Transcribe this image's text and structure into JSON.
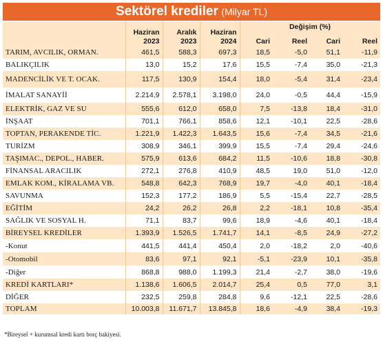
{
  "title": {
    "main": "Sektörel krediler",
    "sub": "(Milyar TL)"
  },
  "columns": {
    "h1": [
      "Haziran",
      "2023"
    ],
    "h2": [
      "Aralık",
      "2023"
    ],
    "h3": [
      "Haziran",
      "2024"
    ],
    "change_group": "Değişim (%)",
    "c1": "Cari",
    "c2": "Reel",
    "c3": "Cari",
    "c4": "Reel"
  },
  "rows": [
    {
      "name": "TARIM, AVCILIK, ORMAN.",
      "v": [
        "461,5",
        "588,3",
        "697,3",
        "18,5",
        "-5,0",
        "51,1",
        "-11,9"
      ]
    },
    {
      "name": "BALIKÇILIK",
      "v": [
        "13,0",
        "15,2",
        "17,6",
        "15,5",
        "-7,4",
        "35,0",
        "-21,3"
      ]
    },
    {
      "name": "MADENCİLİK VE T. OCAK.",
      "v": [
        "117,5",
        "130,9",
        "154,4",
        "18,0",
        "-5,4",
        "31,4",
        "-23,4"
      ]
    },
    {
      "name": "İMALAT SANAYİİ",
      "v": [
        "2.214,9",
        "2.578,1",
        "3.198,0",
        "24,0",
        "-0,5",
        "44,4",
        "-15,9"
      ]
    },
    {
      "name": "ELEKTRİK, GAZ VE SU",
      "v": [
        "555,6",
        "612,0",
        "658,0",
        "7,5",
        "-13,8",
        "18,4",
        "-31,0"
      ]
    },
    {
      "name": "İNŞAAT",
      "v": [
        "701,1",
        "766,1",
        "858,6",
        "12,1",
        "-10,1",
        "22,5",
        "-28,6"
      ]
    },
    {
      "name": "TOPTAN, PERAKENDE TİC.",
      "v": [
        "1.221,9",
        "1.422,3",
        "1.643,5",
        "15,6",
        "-7,4",
        "34,5",
        "-21,6"
      ]
    },
    {
      "name": "TURİZM",
      "v": [
        "308,9",
        "346,1",
        "399,9",
        "15,5",
        "-7,4",
        "29,4",
        "-24,6"
      ]
    },
    {
      "name": "TAŞIMAC., DEPOL., HABER.",
      "v": [
        "575,9",
        "613,6",
        "684,2",
        "11,5",
        "-10,6",
        "18,8",
        "-30,8"
      ]
    },
    {
      "name": "FİNANSAL ARACILIK",
      "v": [
        "272,1",
        "276,8",
        "410,9",
        "48,5",
        "19,0",
        "51,0",
        "-12,0"
      ]
    },
    {
      "name": "EMLAK KOM., KİRALAMA VB.",
      "v": [
        "548,8",
        "642,3",
        "768,9",
        "19,7",
        "-4,0",
        "40,1",
        "-18,4"
      ]
    },
    {
      "name": "SAVUNMA",
      "v": [
        "152,3",
        "177,2",
        "186,9",
        "5,5",
        "-15,4",
        "22,7",
        "-28,5"
      ]
    },
    {
      "name": "EĞİTİM",
      "v": [
        "24,2",
        "26,2",
        "26,8",
        "2,2",
        "-18,1",
        "10,8",
        "-35,4"
      ]
    },
    {
      "name": "SAĞLIK VE SOSYAL H.",
      "v": [
        "71,1",
        "83,7",
        "99,6",
        "18,9",
        "-4,6",
        "40,1",
        "-18,4"
      ]
    },
    {
      "name": "BİREYSEL KREDİLER",
      "v": [
        "1.393,9",
        "1.526,5",
        "1.741,7",
        "14,1",
        "-8,5",
        "24,9",
        "-27,2"
      ]
    },
    {
      "name": " -Konut",
      "v": [
        "441,5",
        "441,4",
        "450,4",
        "2,0",
        "-18,2",
        "2,0",
        "-40,6"
      ]
    },
    {
      "name": " -Otomobil",
      "v": [
        "83,6",
        "97,1",
        "92,1",
        "-5,1",
        "-23,9",
        "10,1",
        "-35,8"
      ]
    },
    {
      "name": " -Diğer",
      "v": [
        "868,8",
        "988,0",
        "1.199,3",
        "21,4",
        "-2,7",
        "38,0",
        "-19,6"
      ]
    },
    {
      "name": "KREDİ KARTLARI*",
      "v": [
        "1.138,6",
        "1.606,5",
        "2.014,7",
        "25,4",
        "0,5",
        "77,0",
        "3,1"
      ]
    },
    {
      "name": "DİĞER",
      "v": [
        "232,5",
        "259,8",
        "284,8",
        "9,6",
        "-12,1",
        "22,5",
        "-28,6"
      ]
    },
    {
      "name": "TOPLAM",
      "v": [
        "10.003,8",
        "11.671,7",
        "13.845,8",
        "18,6",
        "-4,9",
        "38,4",
        "-19,3"
      ]
    }
  ],
  "footnote": "*Bireysel + kurumsal kredi kartı borç bakiyesi.",
  "colors": {
    "title_bg": "#e8682b",
    "stripe": "#fde5c5",
    "divider": "#f0c89a"
  }
}
